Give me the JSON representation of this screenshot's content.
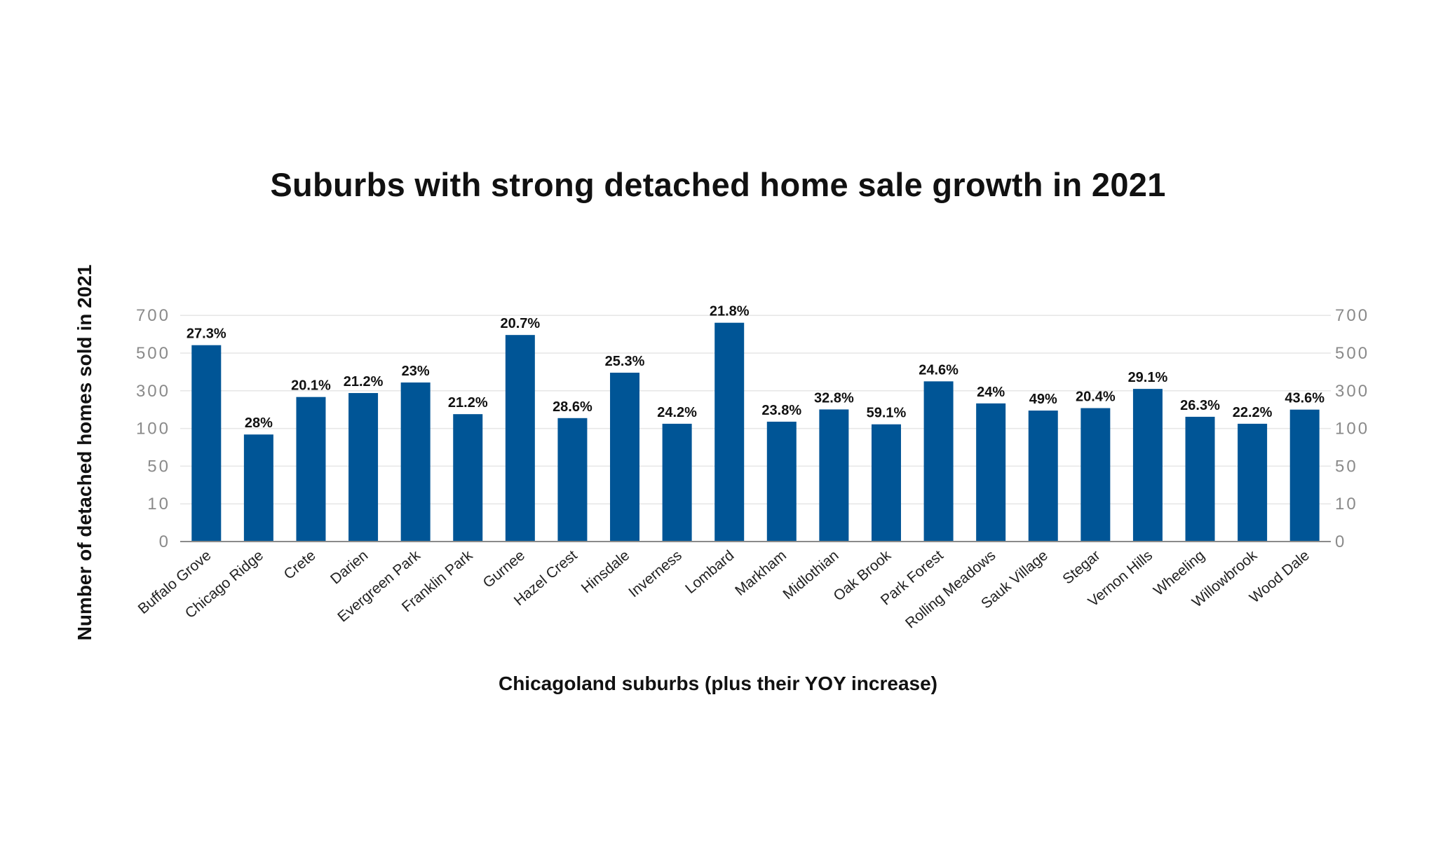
{
  "chart_data": {
    "type": "bar",
    "title": "Suburbs with strong detached home sale growth in 2021",
    "xlabel": "Chicagoland suburbs (plus their YOY increase)",
    "ylabel": "Number of detached homes sold in 2021",
    "y_ticks": [
      "0",
      "10",
      "50",
      "100",
      "300",
      "500",
      "700"
    ],
    "y_tick_values": [
      0,
      10,
      50,
      100,
      300,
      500,
      700
    ],
    "y_scale": "non-linear (equally spaced ticks)",
    "secondary_y_axis": true,
    "grid": true,
    "legend": "none",
    "bar_color": "#005596",
    "categories": [
      "Buffalo Grove",
      "Chicago Ridge",
      "Crete",
      "Darien",
      "Evergreen Park",
      "Franklin Park",
      "Gurnee",
      "Hazel Crest",
      "Hinsdale",
      "Inverness",
      "Lombard",
      "Markham",
      "Midlothian",
      "Oak Brook",
      "Park Forest",
      "Rolling Meadows",
      "Sauk Village",
      "Stegar",
      "Vernon Hills",
      "Wheeling",
      "Willowbrook",
      "Wood Dale"
    ],
    "values": [
      542,
      92,
      267,
      288,
      344,
      176,
      596,
      155,
      396,
      125,
      661,
      136,
      201,
      122,
      350,
      233,
      195,
      208,
      310,
      162,
      125,
      200
    ],
    "data_labels": [
      "27.3%",
      "28%",
      "20.1%",
      "21.2%",
      "23%",
      "21.2%",
      "20.7%",
      "28.6%",
      "25.3%",
      "24.2%",
      "21.8%",
      "23.8%",
      "32.8%",
      "59.1%",
      "24.6%",
      "24%",
      "49%",
      "20.4%",
      "29.1%",
      "26.3%",
      "22.2%",
      "43.6%"
    ]
  }
}
